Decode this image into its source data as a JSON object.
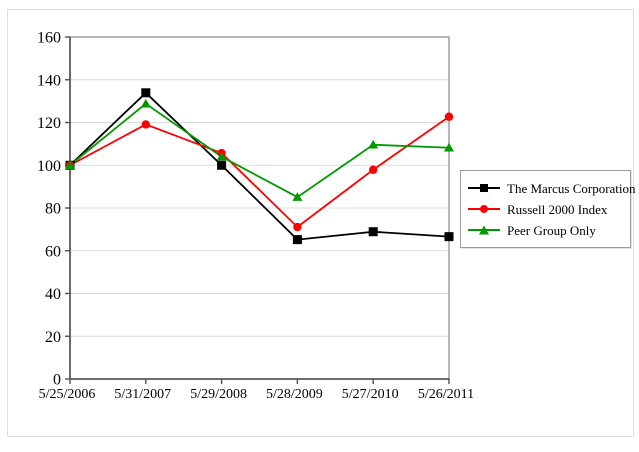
{
  "chart_data": {
    "type": "line",
    "title": "",
    "xlabel": "",
    "ylabel": "",
    "x_labels": [
      "5/25/2006",
      "5/31/2007",
      "5/29/2008",
      "5/28/2009",
      "5/27/2010",
      "5/26/2011"
    ],
    "ylim": [
      0,
      160
    ],
    "y_ticks": [
      0,
      20,
      40,
      60,
      80,
      100,
      120,
      140,
      160
    ],
    "grid": "horizontal",
    "legend_position": "right",
    "series": [
      {
        "name": "The Marcus Corporation",
        "marker": "square",
        "color": "#000000",
        "values": [
          100,
          133.9,
          100.0,
          65.2,
          68.9,
          66.6
        ]
      },
      {
        "name": "Russell 2000 Index",
        "marker": "circle",
        "color": "#ff0000",
        "values": [
          100,
          119.1,
          105.7,
          71.1,
          97.9,
          122.7
        ]
      },
      {
        "name": "Peer Group Only",
        "marker": "triangle",
        "color": "#009900",
        "values": [
          100,
          128.8,
          104.0,
          85.1,
          109.6,
          108.2
        ]
      }
    ]
  },
  "colors": {
    "background": "#ffffff",
    "gridline": "#dcdcdc",
    "plot_border": "#979797",
    "axis": "#4f4f4f",
    "outer_border": "#dedede",
    "legend_border": "#9d9d9d",
    "text": "#000000"
  }
}
